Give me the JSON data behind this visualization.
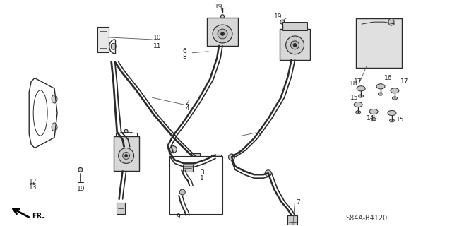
{
  "bg_color": "#ffffff",
  "diagram_code": "S84A-B4120",
  "line_color": "#2a2a2a",
  "text_color": "#222222",
  "font_size": 6.5,
  "fig_width": 6.4,
  "fig_height": 3.2,
  "dpi": 100
}
